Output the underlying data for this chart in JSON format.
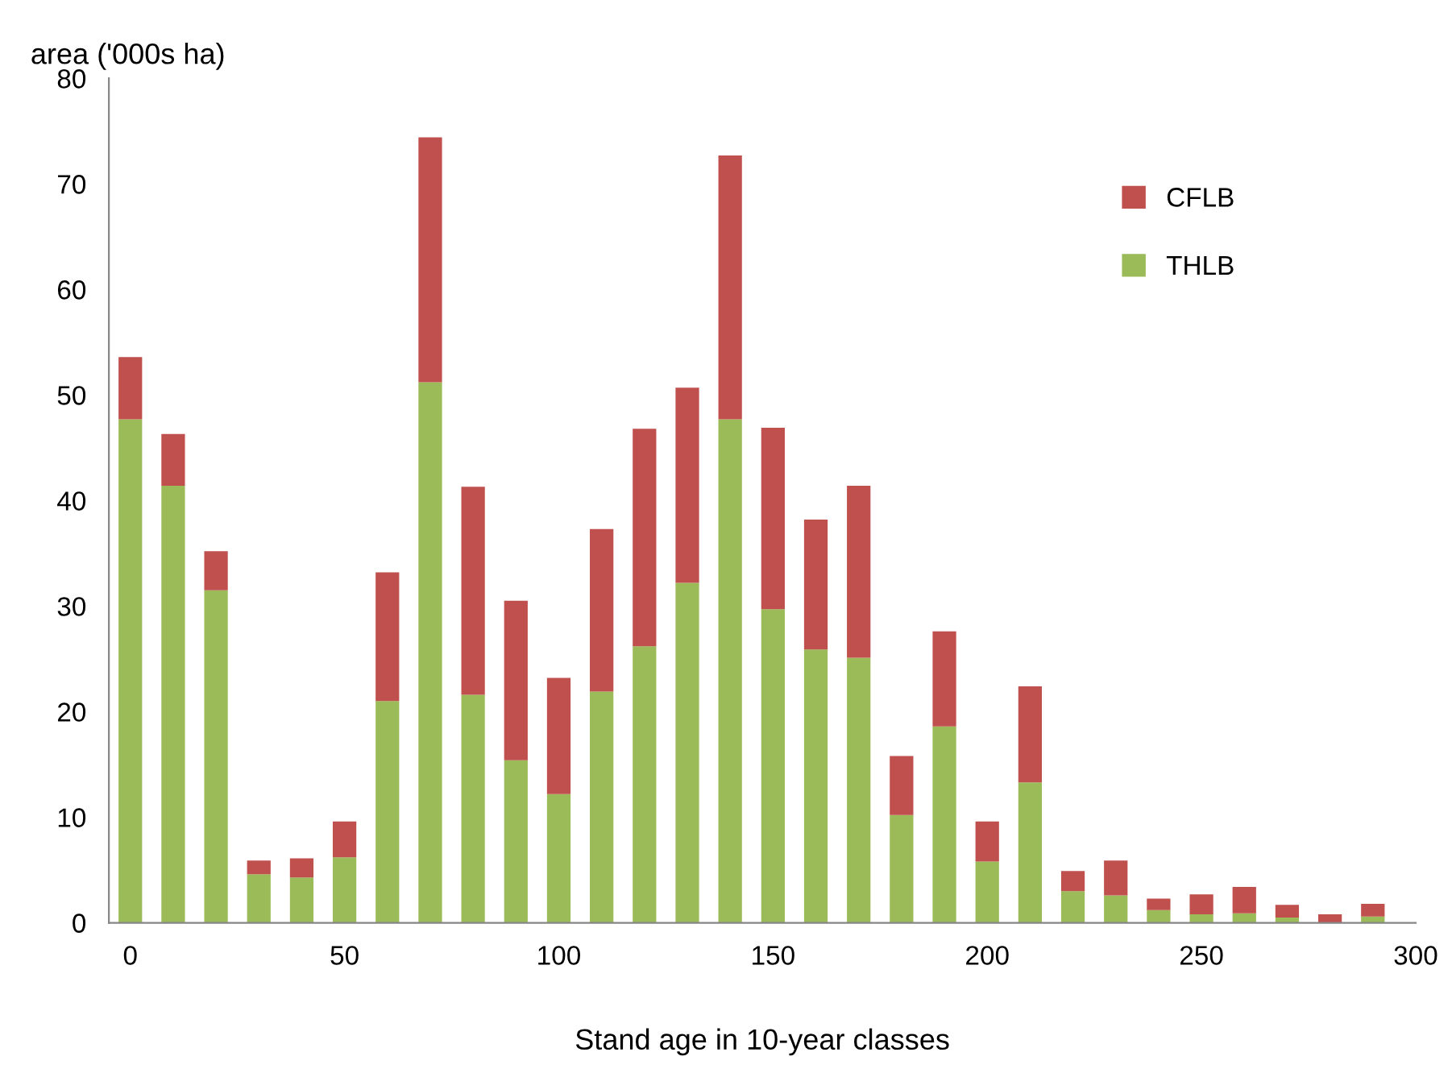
{
  "chart_data": {
    "type": "bar",
    "stacked": true,
    "xlabel": "Stand age in 10-year classes",
    "ylabel": "area ('000s ha)",
    "x": [
      0,
      10,
      20,
      30,
      40,
      50,
      60,
      70,
      80,
      90,
      100,
      110,
      120,
      130,
      140,
      150,
      160,
      170,
      180,
      190,
      200,
      210,
      220,
      230,
      240,
      250,
      260,
      270,
      280,
      290
    ],
    "series": [
      {
        "name": "THLB",
        "color": "#9bbb59",
        "values": [
          47.7,
          41.4,
          31.5,
          4.6,
          4.3,
          6.2,
          21.0,
          51.2,
          21.6,
          15.4,
          12.2,
          21.9,
          26.2,
          32.2,
          47.7,
          29.7,
          25.9,
          25.1,
          10.2,
          18.6,
          5.8,
          13.3,
          3.0,
          2.6,
          1.2,
          0.8,
          0.9,
          0.5,
          null,
          0.6
        ]
      },
      {
        "name": "CFLB",
        "color": "#c0504d",
        "values": [
          5.9,
          4.9,
          3.7,
          1.3,
          1.8,
          3.4,
          12.2,
          23.2,
          19.7,
          15.1,
          11.0,
          15.4,
          20.6,
          18.5,
          25.0,
          17.2,
          12.3,
          16.3,
          5.6,
          9.0,
          3.8,
          9.1,
          1.9,
          3.3,
          1.1,
          1.9,
          2.5,
          1.2,
          0.8,
          1.2
        ]
      }
    ],
    "xlim": [
      -5,
      300
    ],
    "xticks": [
      0,
      50,
      100,
      150,
      200,
      250,
      300
    ],
    "ylim": [
      0,
      80
    ],
    "yticks": [
      0,
      10,
      20,
      30,
      40,
      50,
      60,
      70,
      80
    ],
    "legend": "top right",
    "grid": false
  }
}
